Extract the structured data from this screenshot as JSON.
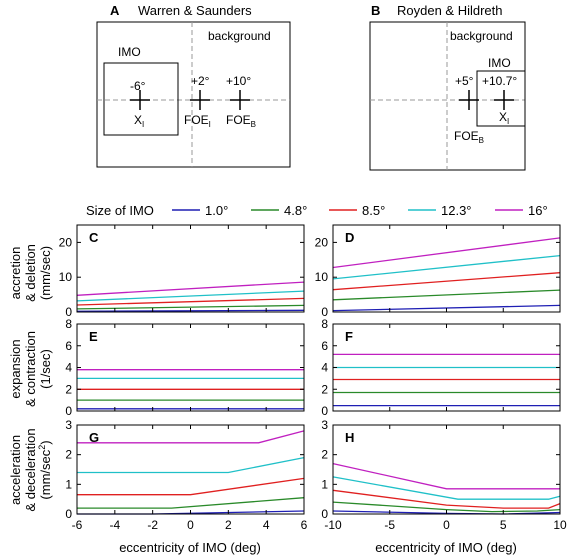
{
  "diagrams": {
    "A": {
      "letter": "A",
      "title": "Warren & Saunders",
      "background_label": "background",
      "imo_label": "IMO",
      "markers": [
        {
          "value": "-6°",
          "name": "X",
          "sub": "I"
        },
        {
          "value": "+2°",
          "name": "FOE",
          "sub": "I"
        },
        {
          "value": "+10°",
          "name": "FOE",
          "sub": "B"
        }
      ]
    },
    "B": {
      "letter": "B",
      "title": "Royden & Hildreth",
      "background_label": "background",
      "imo_label": "IMO",
      "markers": [
        {
          "value": "+5°",
          "name": "FOE",
          "sub": "B"
        },
        {
          "value": "+10.7°",
          "name": "X",
          "sub": "I"
        }
      ]
    }
  },
  "legend": {
    "title": "Size of IMO",
    "entries": [
      {
        "label": "1.0°",
        "color": "#1f1fb4"
      },
      {
        "label": "4.8°",
        "color": "#2a8a2a"
      },
      {
        "label": "8.5°",
        "color": "#e02020"
      },
      {
        "label": "12.3°",
        "color": "#20c0c8"
      },
      {
        "label": "16°",
        "color": "#c020c0"
      }
    ]
  },
  "row_labels": [
    {
      "line1": "accretion",
      "line2": "& deletion",
      "line3": "(mm/sec)"
    },
    {
      "line1": "expansion",
      "line2": "& contraction",
      "line3": "(1/sec)"
    },
    {
      "line1": "acceleration",
      "line2": "& deceleration",
      "line3": "(mm/sec",
      "sup": "2",
      "close": ")"
    }
  ],
  "xlabel": "eccentricity of IMO (deg)",
  "chart_data": [
    {
      "type": "line",
      "panel": "C",
      "xlim": [
        -6,
        6
      ],
      "ylim": [
        0,
        25
      ],
      "yticks": [
        "0",
        "10",
        "20"
      ],
      "ytick_values": [
        0,
        10,
        20
      ],
      "xticks": [
        "-6",
        "-4",
        "-2",
        "0",
        "2",
        "4",
        "6"
      ],
      "xtick_values": [
        -6,
        -4,
        -2,
        0,
        2,
        4,
        6
      ],
      "show_xticklabels": false,
      "series": [
        {
          "x": [
            -6,
            6
          ],
          "y": [
            0.2,
            0.5
          ]
        },
        {
          "x": [
            -6,
            6
          ],
          "y": [
            0.9,
            1.9
          ]
        },
        {
          "x": [
            -6,
            6
          ],
          "y": [
            2.0,
            3.9
          ]
        },
        {
          "x": [
            -6,
            6
          ],
          "y": [
            3.2,
            6.0
          ]
        },
        {
          "x": [
            -6,
            6
          ],
          "y": [
            4.8,
            8.6
          ]
        }
      ]
    },
    {
      "type": "line",
      "panel": "D",
      "xlim": [
        -10,
        10
      ],
      "ylim": [
        0,
        25
      ],
      "yticks": [
        "0",
        "10",
        "20"
      ],
      "ytick_values": [
        0,
        10,
        20
      ],
      "xticks": [
        "-10",
        "-5",
        "0",
        "5",
        "10"
      ],
      "xtick_values": [
        -10,
        -5,
        0,
        5,
        10
      ],
      "show_xticklabels": false,
      "series": [
        {
          "x": [
            -10,
            10
          ],
          "y": [
            0.4,
            1.9
          ]
        },
        {
          "x": [
            -10,
            10
          ],
          "y": [
            3.5,
            6.3
          ]
        },
        {
          "x": [
            -10,
            10
          ],
          "y": [
            6.4,
            11.3
          ]
        },
        {
          "x": [
            -10,
            10
          ],
          "y": [
            9.5,
            16.2
          ]
        },
        {
          "x": [
            -10,
            10
          ],
          "y": [
            12.8,
            21.3
          ]
        }
      ]
    },
    {
      "type": "line",
      "panel": "E",
      "xlim": [
        -6,
        6
      ],
      "ylim": [
        0,
        8
      ],
      "yticks": [
        "0",
        "2",
        "4",
        "6",
        "8"
      ],
      "ytick_values": [
        0,
        2,
        4,
        6,
        8
      ],
      "xticks": [
        "-6",
        "-4",
        "-2",
        "0",
        "2",
        "4",
        "6"
      ],
      "xtick_values": [
        -6,
        -4,
        -2,
        0,
        2,
        4,
        6
      ],
      "show_xticklabels": false,
      "series": [
        {
          "x": [
            -6,
            6
          ],
          "y": [
            0.2,
            0.2
          ]
        },
        {
          "x": [
            -6,
            6
          ],
          "y": [
            1.0,
            1.0
          ]
        },
        {
          "x": [
            -6,
            6
          ],
          "y": [
            2.0,
            2.0
          ]
        },
        {
          "x": [
            -6,
            6
          ],
          "y": [
            3.0,
            3.0
          ]
        },
        {
          "x": [
            -6,
            6
          ],
          "y": [
            3.8,
            3.8
          ]
        }
      ]
    },
    {
      "type": "line",
      "panel": "F",
      "xlim": [
        -10,
        10
      ],
      "ylim": [
        0,
        8
      ],
      "yticks": [
        "0",
        "2",
        "4",
        "6",
        "8"
      ],
      "ytick_values": [
        0,
        2,
        4,
        6,
        8
      ],
      "xticks": [
        "-10",
        "-5",
        "0",
        "5",
        "10"
      ],
      "xtick_values": [
        -10,
        -5,
        0,
        5,
        10
      ],
      "show_xticklabels": false,
      "series": [
        {
          "x": [
            -10,
            10
          ],
          "y": [
            0.5,
            0.5
          ]
        },
        {
          "x": [
            -10,
            10
          ],
          "y": [
            1.7,
            1.7
          ]
        },
        {
          "x": [
            -10,
            10
          ],
          "y": [
            2.9,
            2.9
          ]
        },
        {
          "x": [
            -10,
            10
          ],
          "y": [
            4.0,
            4.0
          ]
        },
        {
          "x": [
            -10,
            10
          ],
          "y": [
            5.2,
            5.2
          ]
        }
      ]
    },
    {
      "type": "line",
      "panel": "G",
      "xlim": [
        -6,
        6
      ],
      "ylim": [
        0,
        3
      ],
      "yticks": [
        "0",
        "1",
        "2",
        "3"
      ],
      "ytick_values": [
        0,
        1,
        2,
        3
      ],
      "xticks": [
        "-6",
        "-4",
        "-2",
        "0",
        "2",
        "4",
        "6"
      ],
      "xtick_values": [
        -6,
        -4,
        -2,
        0,
        2,
        4,
        6
      ],
      "show_xticklabels": true,
      "series": [
        {
          "x": [
            -6,
            -2,
            6
          ],
          "y": [
            0.0,
            0.0,
            0.1
          ]
        },
        {
          "x": [
            -6,
            -1,
            6
          ],
          "y": [
            0.2,
            0.2,
            0.55
          ]
        },
        {
          "x": [
            -6,
            0,
            6
          ],
          "y": [
            0.65,
            0.65,
            1.2
          ]
        },
        {
          "x": [
            -6,
            2,
            6
          ],
          "y": [
            1.4,
            1.4,
            1.9
          ]
        },
        {
          "x": [
            -6,
            3.6,
            6
          ],
          "y": [
            2.4,
            2.4,
            2.8
          ]
        }
      ]
    },
    {
      "type": "line",
      "panel": "H",
      "xlim": [
        -10,
        10
      ],
      "ylim": [
        0,
        3
      ],
      "yticks": [
        "0",
        "1",
        "2",
        "3"
      ],
      "ytick_values": [
        0,
        1,
        2,
        3
      ],
      "xticks": [
        "-10",
        "-5",
        "0",
        "5",
        "10"
      ],
      "xtick_values": [
        -10,
        -5,
        0,
        5,
        10
      ],
      "show_xticklabels": true,
      "series": [
        {
          "x": [
            -10,
            0,
            5,
            10
          ],
          "y": [
            0.1,
            0.02,
            0.0,
            0.05
          ]
        },
        {
          "x": [
            -10,
            0,
            4,
            8,
            10
          ],
          "y": [
            0.4,
            0.15,
            0.08,
            0.1,
            0.15
          ]
        },
        {
          "x": [
            -10,
            0,
            5,
            9,
            10
          ],
          "y": [
            0.8,
            0.3,
            0.2,
            0.2,
            0.35
          ]
        },
        {
          "x": [
            -10,
            1,
            9,
            10
          ],
          "y": [
            1.25,
            0.5,
            0.5,
            0.6
          ]
        },
        {
          "x": [
            -10,
            0,
            10
          ],
          "y": [
            1.7,
            0.85,
            0.85
          ]
        }
      ]
    }
  ]
}
